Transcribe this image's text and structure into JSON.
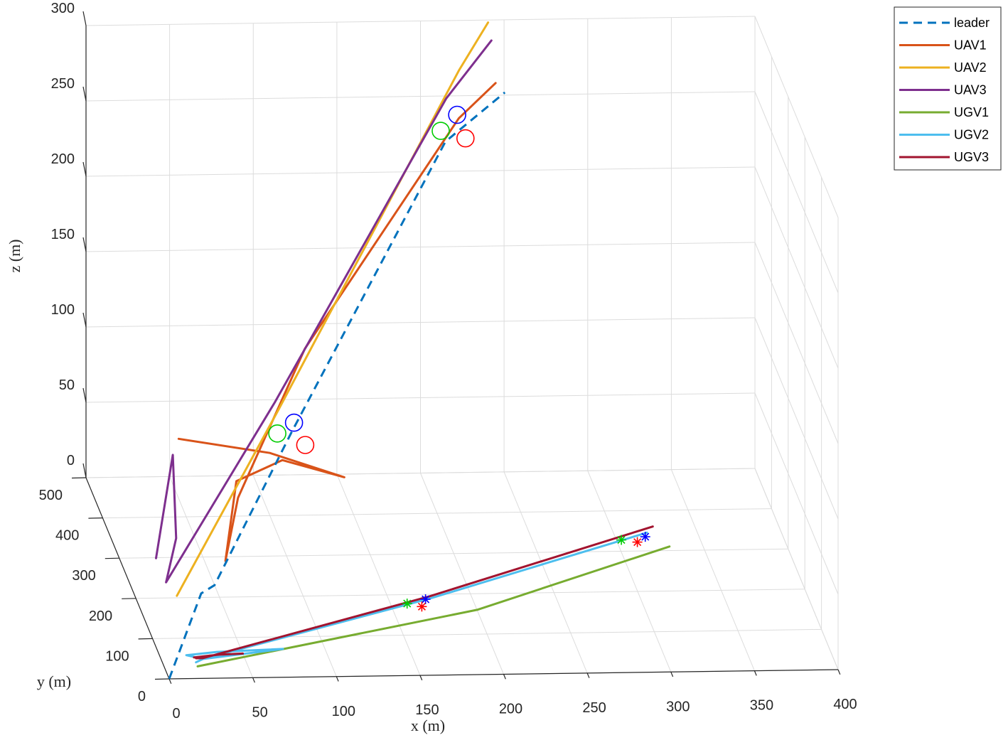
{
  "chart_data": {
    "type": "line",
    "title": "",
    "xlabel": "x (m)",
    "ylabel": "y (m)",
    "zlabel": "z (m)",
    "xlim": [
      0,
      400
    ],
    "ylim": [
      0,
      500
    ],
    "zlim": [
      0,
      300
    ],
    "x_ticks": [
      "0",
      "50",
      "100",
      "150",
      "200",
      "250",
      "300",
      "350",
      "400"
    ],
    "y_ticks": [
      "0",
      "100",
      "200",
      "300",
      "400",
      "500"
    ],
    "z_ticks": [
      "0",
      "50",
      "100",
      "150",
      "200",
      "250",
      "300"
    ],
    "grid": true,
    "legend_position": "top-right (outside)",
    "series": [
      {
        "name": "leader",
        "color": "#0072BD",
        "style": "dashed",
        "points": [
          [
            0,
            0,
            0
          ],
          [
            40,
            210,
            0
          ],
          [
            50,
            230,
            0
          ],
          [
            100,
            270,
            90
          ],
          [
            200,
            350,
            260
          ],
          [
            240,
            395,
            280
          ]
        ]
      },
      {
        "name": "UAV1",
        "color": "#D95319",
        "style": "solid",
        "points": [
          [
            35,
            295,
            80
          ],
          [
            95,
            350,
            55
          ],
          [
            150,
            455,
            10
          ],
          [
            110,
            425,
            30
          ],
          [
            70,
            300,
            50
          ],
          [
            55,
            215,
            20
          ],
          [
            65,
            240,
            55
          ],
          [
            110,
            290,
            140
          ],
          [
            210,
            370,
            270
          ],
          [
            235,
            400,
            285
          ]
        ]
      },
      {
        "name": "UAV2",
        "color": "#EDB120",
        "style": "solid",
        "points": [
          [
            25,
            205,
            0
          ],
          [
            90,
            250,
            110
          ],
          [
            205,
            320,
            315
          ],
          [
            225,
            345,
            340
          ]
        ]
      },
      {
        "name": "UAV3",
        "color": "#7E2F8E",
        "style": "solid",
        "points": [
          [
            20,
            280,
            5
          ],
          [
            35,
            330,
            60
          ],
          [
            35,
            310,
            10
          ],
          [
            20,
            220,
            5
          ],
          [
            90,
            270,
            110
          ],
          [
            200,
            345,
            290
          ],
          [
            230,
            375,
            320
          ]
        ]
      },
      {
        "name": "UGV1",
        "color": "#77AC30",
        "style": "solid",
        "points": [
          [
            20,
            30,
            0
          ],
          [
            200,
            160,
            0
          ],
          [
            330,
            310,
            0
          ]
        ]
      },
      {
        "name": "UGV2",
        "color": "#4DBEEE",
        "style": "solid",
        "points": [
          [
            20,
            40,
            0
          ],
          [
            25,
            48,
            0
          ],
          [
            75,
            70,
            0
          ],
          [
            35,
            65,
            0
          ],
          [
            16,
            58,
            0
          ],
          [
            25,
            48,
            0
          ],
          [
            175,
            190,
            0
          ],
          [
            320,
            345,
            0
          ]
        ]
      },
      {
        "name": "UGV3",
        "color": "#A2142F",
        "style": "solid",
        "points": [
          [
            50,
            60,
            0
          ],
          [
            35,
            58,
            0
          ],
          [
            20,
            52,
            0
          ],
          [
            30,
            56,
            0
          ],
          [
            21,
            50,
            0
          ],
          [
            25,
            50,
            0
          ],
          [
            175,
            195,
            0
          ],
          [
            325,
            360,
            0
          ]
        ]
      }
    ],
    "markers": [
      {
        "shape": "circle",
        "color": "#0000FF",
        "at": [
          102,
          275,
          95
        ]
      },
      {
        "shape": "circle",
        "color": "#00CC00",
        "at": [
          92,
          275,
          88
        ]
      },
      {
        "shape": "circle",
        "color": "#FF0000",
        "at": [
          108,
          268,
          82
        ]
      },
      {
        "shape": "circle",
        "color": "#0000FF",
        "at": [
          208,
          360,
          275
        ]
      },
      {
        "shape": "circle",
        "color": "#00CC00",
        "at": [
          198,
          358,
          265
        ]
      },
      {
        "shape": "circle",
        "color": "#FF0000",
        "at": [
          212,
          350,
          262
        ]
      },
      {
        "shape": "star",
        "color": "#0000FF",
        "at": [
          172,
          188,
          0
        ]
      },
      {
        "shape": "star",
        "color": "#00CC00",
        "at": [
          160,
          178,
          0
        ]
      },
      {
        "shape": "star",
        "color": "#FF0000",
        "at": [
          168,
          170,
          0
        ]
      },
      {
        "shape": "star",
        "color": "#0000FF",
        "at": [
          318,
          335,
          0
        ]
      },
      {
        "shape": "star",
        "color": "#00CC00",
        "at": [
          303,
          328,
          0
        ]
      },
      {
        "shape": "star",
        "color": "#FF0000",
        "at": [
          312,
          322,
          0
        ]
      }
    ]
  }
}
